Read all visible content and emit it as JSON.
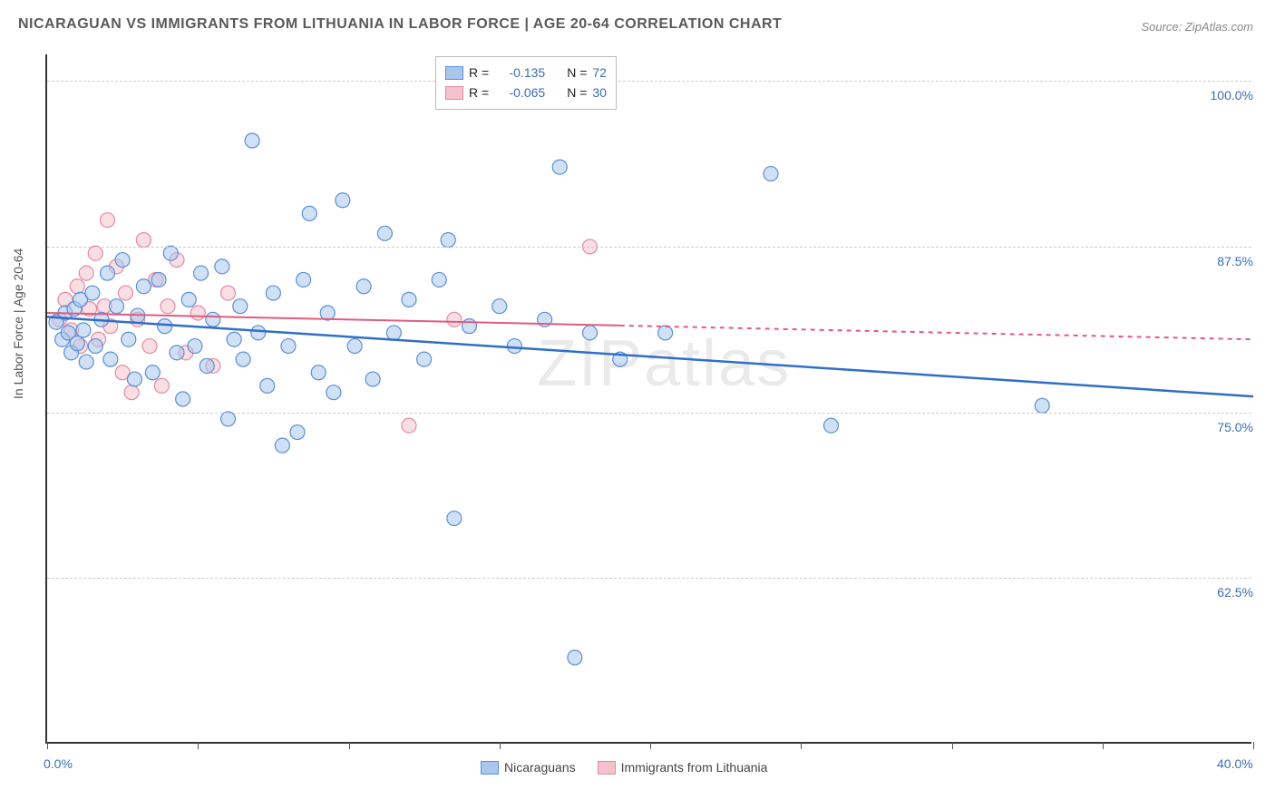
{
  "title": "NICARAGUAN VS IMMIGRANTS FROM LITHUANIA IN LABOR FORCE | AGE 20-64 CORRELATION CHART",
  "source": "Source: ZipAtlas.com",
  "y_axis_title": "In Labor Force | Age 20-64",
  "watermark": "ZIPatlas",
  "chart": {
    "type": "scatter",
    "xlim": [
      0,
      40
    ],
    "ylim": [
      50,
      102
    ],
    "x_ticks": [
      0,
      5,
      10,
      15,
      20,
      25,
      30,
      35,
      40
    ],
    "x_tick_labels": {
      "0": "0.0%",
      "40": "40.0%"
    },
    "y_gridlines": [
      62.5,
      75.0,
      87.5,
      100.0
    ],
    "y_tick_labels": [
      "62.5%",
      "75.0%",
      "87.5%",
      "100.0%"
    ],
    "grid_color": "#cccccc",
    "background_color": "#ffffff",
    "axis_color": "#333333",
    "label_color": "#3b6db8",
    "marker_radius": 8,
    "marker_opacity": 0.55,
    "series": [
      {
        "name": "Nicaraguans",
        "fill": "#a9c7ec",
        "stroke": "#5b8fd6",
        "trend": {
          "x1": 0,
          "y1": 82.2,
          "x2": 40,
          "y2": 76.2,
          "color": "#2f6fc7",
          "width": 2.5,
          "dash_from_x": null
        },
        "points": [
          [
            0.3,
            81.8
          ],
          [
            0.5,
            80.5
          ],
          [
            0.6,
            82.5
          ],
          [
            0.7,
            81.0
          ],
          [
            0.8,
            79.5
          ],
          [
            0.9,
            82.8
          ],
          [
            1.0,
            80.2
          ],
          [
            1.1,
            83.5
          ],
          [
            1.2,
            81.2
          ],
          [
            1.3,
            78.8
          ],
          [
            1.5,
            84.0
          ],
          [
            1.6,
            80.0
          ],
          [
            1.8,
            82.0
          ],
          [
            2.0,
            85.5
          ],
          [
            2.1,
            79.0
          ],
          [
            2.3,
            83.0
          ],
          [
            2.5,
            86.5
          ],
          [
            2.7,
            80.5
          ],
          [
            2.9,
            77.5
          ],
          [
            3.0,
            82.3
          ],
          [
            3.2,
            84.5
          ],
          [
            3.5,
            78.0
          ],
          [
            3.7,
            85.0
          ],
          [
            3.9,
            81.5
          ],
          [
            4.1,
            87.0
          ],
          [
            4.3,
            79.5
          ],
          [
            4.5,
            76.0
          ],
          [
            4.7,
            83.5
          ],
          [
            4.9,
            80.0
          ],
          [
            5.1,
            85.5
          ],
          [
            5.3,
            78.5
          ],
          [
            5.5,
            82.0
          ],
          [
            5.8,
            86.0
          ],
          [
            6.0,
            74.5
          ],
          [
            6.2,
            80.5
          ],
          [
            6.4,
            83.0
          ],
          [
            6.5,
            79.0
          ],
          [
            6.8,
            95.5
          ],
          [
            7.0,
            81.0
          ],
          [
            7.3,
            77.0
          ],
          [
            7.5,
            84.0
          ],
          [
            7.8,
            72.5
          ],
          [
            8.0,
            80.0
          ],
          [
            8.3,
            73.5
          ],
          [
            8.5,
            85.0
          ],
          [
            8.7,
            90.0
          ],
          [
            9.0,
            78.0
          ],
          [
            9.3,
            82.5
          ],
          [
            9.5,
            76.5
          ],
          [
            9.8,
            91.0
          ],
          [
            10.2,
            80.0
          ],
          [
            10.5,
            84.5
          ],
          [
            10.8,
            77.5
          ],
          [
            11.2,
            88.5
          ],
          [
            11.5,
            81.0
          ],
          [
            12.0,
            83.5
          ],
          [
            12.5,
            79.0
          ],
          [
            13.0,
            85.0
          ],
          [
            13.3,
            88.0
          ],
          [
            13.5,
            67.0
          ],
          [
            14.0,
            81.5
          ],
          [
            15.0,
            83.0
          ],
          [
            15.5,
            80.0
          ],
          [
            16.5,
            82.0
          ],
          [
            17.0,
            93.5
          ],
          [
            17.5,
            56.5
          ],
          [
            18.0,
            81.0
          ],
          [
            19.0,
            79.0
          ],
          [
            20.5,
            81.0
          ],
          [
            24.0,
            93.0
          ],
          [
            26.0,
            74.0
          ],
          [
            33.0,
            75.5
          ]
        ]
      },
      {
        "name": "Immigrants from Lithuania",
        "fill": "#f4c2cd",
        "stroke": "#e68aa2",
        "trend": {
          "x1": 0,
          "y1": 82.5,
          "x2": 40,
          "y2": 80.5,
          "color": "#e25a7e",
          "width": 2,
          "dash_from_x": 19
        },
        "points": [
          [
            0.4,
            82.0
          ],
          [
            0.6,
            83.5
          ],
          [
            0.8,
            81.2
          ],
          [
            1.0,
            84.5
          ],
          [
            1.1,
            80.0
          ],
          [
            1.3,
            85.5
          ],
          [
            1.4,
            82.8
          ],
          [
            1.6,
            87.0
          ],
          [
            1.7,
            80.5
          ],
          [
            1.9,
            83.0
          ],
          [
            2.0,
            89.5
          ],
          [
            2.1,
            81.5
          ],
          [
            2.3,
            86.0
          ],
          [
            2.5,
            78.0
          ],
          [
            2.6,
            84.0
          ],
          [
            2.8,
            76.5
          ],
          [
            3.0,
            82.0
          ],
          [
            3.2,
            88.0
          ],
          [
            3.4,
            80.0
          ],
          [
            3.6,
            85.0
          ],
          [
            3.8,
            77.0
          ],
          [
            4.0,
            83.0
          ],
          [
            4.3,
            86.5
          ],
          [
            4.6,
            79.5
          ],
          [
            5.0,
            82.5
          ],
          [
            5.5,
            78.5
          ],
          [
            6.0,
            84.0
          ],
          [
            12.0,
            74.0
          ],
          [
            13.5,
            82.0
          ],
          [
            18.0,
            87.5
          ]
        ]
      }
    ]
  },
  "legend_top": {
    "rows": [
      {
        "swatch_fill": "#a9c7ec",
        "swatch_stroke": "#5b8fd6",
        "R_label": "R =",
        "R_val": "-0.135",
        "N_label": "N =",
        "N_val": "72"
      },
      {
        "swatch_fill": "#f4c2cd",
        "swatch_stroke": "#e68aa2",
        "R_label": "R =",
        "R_val": "-0.065",
        "N_label": "N =",
        "N_val": "30"
      }
    ]
  },
  "legend_bottom": {
    "items": [
      {
        "swatch_fill": "#a9c7ec",
        "swatch_stroke": "#5b8fd6",
        "label": "Nicaraguans"
      },
      {
        "swatch_fill": "#f4c2cd",
        "swatch_stroke": "#e68aa2",
        "label": "Immigrants from Lithuania"
      }
    ]
  }
}
